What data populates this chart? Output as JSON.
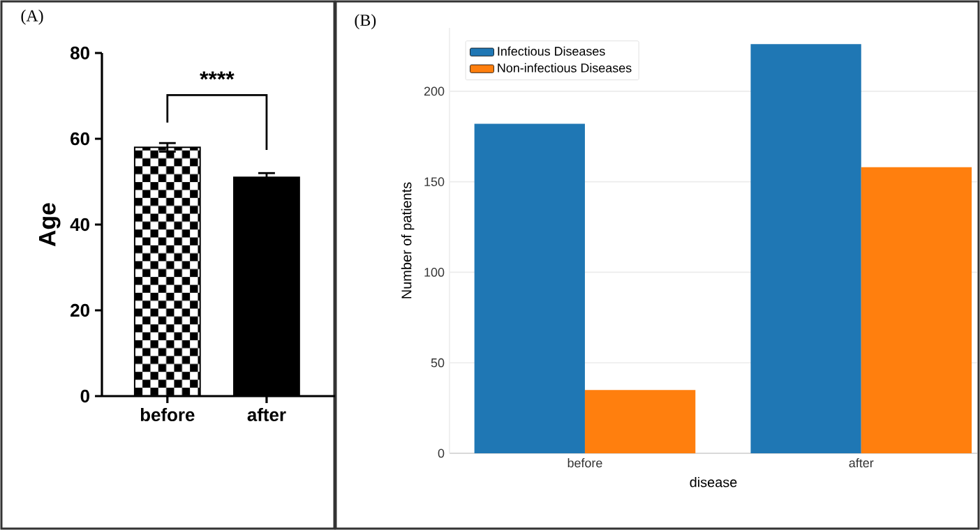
{
  "chart_data": [
    {
      "type": "bar",
      "title": "(A)",
      "categories": [
        "before",
        "after"
      ],
      "values": [
        58,
        51
      ],
      "errors": [
        1,
        1
      ],
      "colors": [
        "#000000",
        "#000000"
      ],
      "ylabel": "Age",
      "ylim": [
        0,
        80
      ],
      "yticks": [
        0,
        20,
        40,
        60,
        80
      ],
      "annotations": [
        "****"
      ]
    },
    {
      "type": "bar",
      "title": "(B)",
      "categories": [
        "before",
        "after"
      ],
      "xlabel": "disease",
      "ylabel": "Number of patients",
      "series": [
        {
          "name": "Infectious Diseases",
          "color": "#1f77b4",
          "values": [
            182,
            226
          ]
        },
        {
          "name": "Non-infectious Diseases",
          "color": "#ff7f0e",
          "values": [
            35,
            158
          ]
        }
      ],
      "ylim": [
        0,
        235
      ],
      "yticks": [
        0,
        50,
        100,
        150,
        200
      ],
      "grid": "y",
      "legend": "top left"
    }
  ]
}
